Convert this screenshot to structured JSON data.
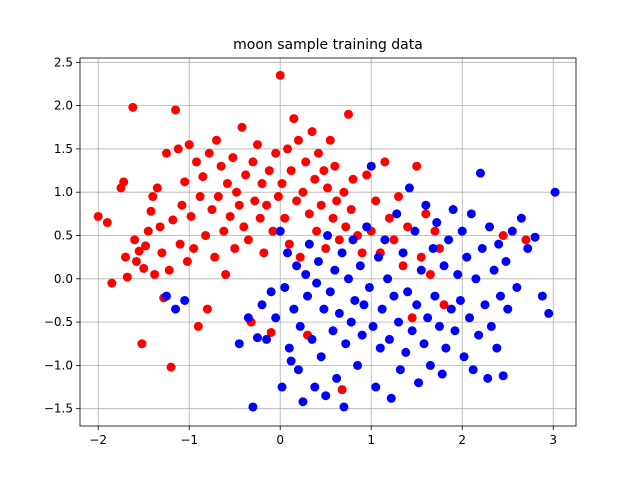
{
  "chart_data": {
    "type": "scatter",
    "title": "moon sample training data",
    "xlabel": "",
    "ylabel": "",
    "xlim": [
      -2.2,
      3.25
    ],
    "ylim": [
      -1.7,
      2.55
    ],
    "xticks": [
      -2,
      -1,
      0,
      1,
      2,
      3
    ],
    "xtick_labels": [
      "−2",
      "−1",
      "0",
      "1",
      "2",
      "3"
    ],
    "yticks": [
      -1.5,
      -1.0,
      -0.5,
      0.0,
      0.5,
      1.0,
      1.5,
      2.0,
      2.5
    ],
    "ytick_labels": [
      "−1.5",
      "−1.0",
      "−0.5",
      "0.0",
      "0.5",
      "1.0",
      "1.5",
      "2.0",
      "2.5"
    ],
    "grid": true,
    "colors": {
      "class_0": "#ff0000",
      "class_1": "#0000ff"
    },
    "series": [
      {
        "color": "#ff0000",
        "points": [
          [
            -2.0,
            0.72
          ],
          [
            -1.9,
            0.65
          ],
          [
            -1.85,
            -0.05
          ],
          [
            -1.75,
            1.05
          ],
          [
            -1.72,
            1.12
          ],
          [
            -1.7,
            0.25
          ],
          [
            -1.68,
            0.02
          ],
          [
            -1.62,
            1.98
          ],
          [
            -1.6,
            0.45
          ],
          [
            -1.58,
            0.2
          ],
          [
            -1.55,
            0.32
          ],
          [
            -1.52,
            -0.75
          ],
          [
            -1.5,
            0.12
          ],
          [
            -1.48,
            0.38
          ],
          [
            -1.45,
            0.55
          ],
          [
            -1.42,
            0.78
          ],
          [
            -1.4,
            0.95
          ],
          [
            -1.38,
            0.05
          ],
          [
            -1.35,
            1.05
          ],
          [
            -1.32,
            0.6
          ],
          [
            -1.3,
            0.3
          ],
          [
            -1.28,
            -0.22
          ],
          [
            -1.25,
            1.45
          ],
          [
            -1.22,
            0.1
          ],
          [
            -1.2,
            -1.02
          ],
          [
            -1.18,
            0.68
          ],
          [
            -1.15,
            1.95
          ],
          [
            -1.12,
            1.5
          ],
          [
            -1.1,
            0.4
          ],
          [
            -1.08,
            0.85
          ],
          [
            -1.05,
            1.12
          ],
          [
            -1.02,
            0.2
          ],
          [
            -1.0,
            1.55
          ],
          [
            -0.98,
            0.72
          ],
          [
            -0.95,
            0.35
          ],
          [
            -0.92,
            1.35
          ],
          [
            -0.9,
            -0.55
          ],
          [
            -0.88,
            0.95
          ],
          [
            -0.85,
            1.18
          ],
          [
            -0.82,
            0.5
          ],
          [
            -0.8,
            -0.35
          ],
          [
            -0.78,
            1.45
          ],
          [
            -0.75,
            0.8
          ],
          [
            -0.72,
            0.25
          ],
          [
            -0.7,
            1.6
          ],
          [
            -0.68,
            0.95
          ],
          [
            -0.65,
            1.3
          ],
          [
            -0.62,
            0.55
          ],
          [
            -0.6,
            0.05
          ],
          [
            -0.58,
            1.1
          ],
          [
            -0.55,
            0.72
          ],
          [
            -0.52,
            1.4
          ],
          [
            -0.5,
            0.35
          ],
          [
            -0.48,
            1.0
          ],
          [
            -0.45,
            0.85
          ],
          [
            -0.42,
            1.75
          ],
          [
            -0.4,
            0.6
          ],
          [
            -0.38,
            1.2
          ],
          [
            -0.35,
            0.45
          ],
          [
            -0.32,
            -0.5
          ],
          [
            -0.3,
            1.35
          ],
          [
            -0.28,
            0.9
          ],
          [
            -0.25,
            1.55
          ],
          [
            -0.22,
            0.7
          ],
          [
            -0.2,
            1.1
          ],
          [
            -0.18,
            0.3
          ],
          [
            -0.15,
            0.85
          ],
          [
            -0.12,
            1.25
          ],
          [
            -0.1,
            -0.62
          ],
          [
            -0.08,
            0.55
          ],
          [
            -0.05,
            1.45
          ],
          [
            -0.02,
            0.95
          ],
          [
            0.0,
            2.35
          ],
          [
            0.02,
            1.1
          ],
          [
            0.05,
            0.7
          ],
          [
            0.08,
            1.5
          ],
          [
            0.1,
            0.4
          ],
          [
            0.12,
            1.25
          ],
          [
            0.15,
            1.85
          ],
          [
            0.18,
            0.9
          ],
          [
            0.2,
            1.6
          ],
          [
            0.22,
            0.25
          ],
          [
            0.25,
            1.0
          ],
          [
            0.28,
            1.35
          ],
          [
            0.3,
            -0.65
          ],
          [
            0.32,
            0.75
          ],
          [
            0.35,
            1.7
          ],
          [
            0.38,
            1.15
          ],
          [
            0.4,
            0.55
          ],
          [
            0.42,
            1.45
          ],
          [
            0.45,
            0.85
          ],
          [
            0.48,
            1.25
          ],
          [
            0.5,
            0.35
          ],
          [
            0.52,
            1.05
          ],
          [
            0.55,
            1.6
          ],
          [
            0.58,
            0.7
          ],
          [
            0.6,
            1.3
          ],
          [
            0.62,
            0.9
          ],
          [
            0.65,
            0.45
          ],
          [
            0.68,
            -1.28
          ],
          [
            0.7,
            1.0
          ],
          [
            0.72,
            0.6
          ],
          [
            0.75,
            1.9
          ],
          [
            0.78,
            0.8
          ],
          [
            0.8,
            1.15
          ],
          [
            0.85,
            0.5
          ],
          [
            0.9,
            0.3
          ],
          [
            0.95,
            1.2
          ],
          [
            1.0,
            0.55
          ],
          [
            1.05,
            0.9
          ],
          [
            1.1,
            0.3
          ],
          [
            1.15,
            1.35
          ],
          [
            1.2,
            0.7
          ],
          [
            1.25,
            0.45
          ],
          [
            1.3,
            0.95
          ],
          [
            1.35,
            0.15
          ],
          [
            1.4,
            0.6
          ],
          [
            1.45,
            -0.45
          ],
          [
            1.5,
            1.3
          ],
          [
            1.55,
            0.25
          ],
          [
            1.6,
            0.75
          ],
          [
            1.65,
            0.05
          ],
          [
            1.7,
            0.55
          ],
          [
            1.75,
            0.35
          ],
          [
            1.8,
            -0.3
          ],
          [
            2.45,
            0.5
          ],
          [
            2.7,
            0.45
          ]
        ]
      },
      {
        "color": "#0000ff",
        "points": [
          [
            -1.25,
            -0.2
          ],
          [
            -1.15,
            -0.35
          ],
          [
            -1.05,
            -0.25
          ],
          [
            -0.45,
            -0.75
          ],
          [
            -0.35,
            -0.45
          ],
          [
            -0.3,
            -1.48
          ],
          [
            -0.25,
            -0.68
          ],
          [
            -0.2,
            -0.3
          ],
          [
            -0.15,
            -0.7
          ],
          [
            -0.1,
            -0.15
          ],
          [
            -0.05,
            -0.45
          ],
          [
            0.0,
            0.55
          ],
          [
            0.02,
            -1.25
          ],
          [
            0.05,
            -0.1
          ],
          [
            0.08,
            0.3
          ],
          [
            0.1,
            -0.8
          ],
          [
            0.12,
            -0.95
          ],
          [
            0.15,
            -0.35
          ],
          [
            0.18,
            0.15
          ],
          [
            0.2,
            -1.05
          ],
          [
            0.22,
            -0.55
          ],
          [
            0.25,
            -1.42
          ],
          [
            0.28,
            0.05
          ],
          [
            0.3,
            -0.2
          ],
          [
            0.32,
            0.4
          ],
          [
            0.35,
            -0.7
          ],
          [
            0.38,
            -1.25
          ],
          [
            0.4,
            -0.05
          ],
          [
            0.42,
            0.2
          ],
          [
            0.45,
            -0.9
          ],
          [
            0.48,
            -0.35
          ],
          [
            0.5,
            -1.35
          ],
          [
            0.52,
            0.5
          ],
          [
            0.55,
            -0.15
          ],
          [
            0.58,
            -0.6
          ],
          [
            0.6,
            0.1
          ],
          [
            0.62,
            -1.15
          ],
          [
            0.65,
            -0.4
          ],
          [
            0.68,
            0.3
          ],
          [
            0.7,
            -1.48
          ],
          [
            0.72,
            -0.75
          ],
          [
            0.75,
            0.0
          ],
          [
            0.78,
            -0.5
          ],
          [
            0.8,
            0.45
          ],
          [
            0.82,
            -0.25
          ],
          [
            0.85,
            -1.0
          ],
          [
            0.88,
            0.15
          ],
          [
            0.9,
            -0.65
          ],
          [
            0.92,
            -0.3
          ],
          [
            0.95,
            0.6
          ],
          [
            0.98,
            -0.1
          ],
          [
            1.0,
            1.3
          ],
          [
            1.02,
            -0.55
          ],
          [
            1.05,
            -1.25
          ],
          [
            1.08,
            0.25
          ],
          [
            1.1,
            -0.8
          ],
          [
            1.12,
            -0.35
          ],
          [
            1.15,
            0.45
          ],
          [
            1.18,
            0.0
          ],
          [
            1.2,
            -0.7
          ],
          [
            1.22,
            -1.38
          ],
          [
            1.25,
            -0.2
          ],
          [
            1.28,
            0.75
          ],
          [
            1.3,
            -0.5
          ],
          [
            1.32,
            -1.05
          ],
          [
            1.35,
            0.3
          ],
          [
            1.38,
            -0.85
          ],
          [
            1.4,
            -0.15
          ],
          [
            1.42,
            1.05
          ],
          [
            1.45,
            -0.6
          ],
          [
            1.48,
            0.55
          ],
          [
            1.5,
            -0.3
          ],
          [
            1.52,
            -1.2
          ],
          [
            1.55,
            0.1
          ],
          [
            1.58,
            -0.75
          ],
          [
            1.6,
            0.85
          ],
          [
            1.62,
            -0.45
          ],
          [
            1.65,
            -1.0
          ],
          [
            1.68,
            0.35
          ],
          [
            1.7,
            -0.2
          ],
          [
            1.72,
            0.65
          ],
          [
            1.75,
            -0.55
          ],
          [
            1.78,
            -1.1
          ],
          [
            1.8,
            0.15
          ],
          [
            1.82,
            -0.8
          ],
          [
            1.85,
            0.45
          ],
          [
            1.88,
            -0.35
          ],
          [
            1.9,
            0.8
          ],
          [
            1.92,
            -0.6
          ],
          [
            1.95,
            0.05
          ],
          [
            1.98,
            -0.25
          ],
          [
            2.0,
            0.55
          ],
          [
            2.02,
            -0.9
          ],
          [
            2.05,
            0.25
          ],
          [
            2.08,
            -0.45
          ],
          [
            2.1,
            0.75
          ],
          [
            2.12,
            -1.05
          ],
          [
            2.15,
            0.0
          ],
          [
            2.18,
            -0.65
          ],
          [
            2.2,
            1.22
          ],
          [
            2.22,
            0.35
          ],
          [
            2.25,
            -0.3
          ],
          [
            2.28,
            -1.15
          ],
          [
            2.3,
            0.6
          ],
          [
            2.32,
            -0.55
          ],
          [
            2.35,
            0.1
          ],
          [
            2.38,
            -0.8
          ],
          [
            2.4,
            0.4
          ],
          [
            2.42,
            -0.2
          ],
          [
            2.45,
            -1.12
          ],
          [
            2.48,
            0.2
          ],
          [
            2.5,
            -0.35
          ],
          [
            2.55,
            0.55
          ],
          [
            2.6,
            -0.1
          ],
          [
            2.65,
            0.7
          ],
          [
            2.72,
            0.35
          ],
          [
            2.8,
            0.48
          ],
          [
            2.88,
            -0.2
          ],
          [
            2.95,
            -0.4
          ],
          [
            3.02,
            1.0
          ]
        ]
      }
    ]
  }
}
